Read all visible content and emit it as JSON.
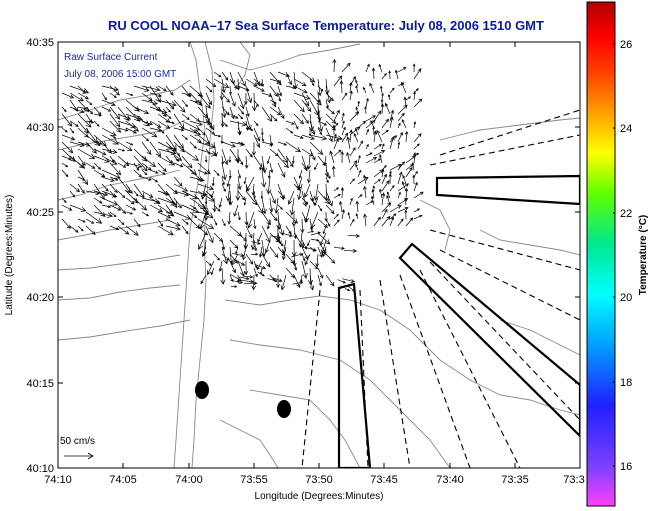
{
  "title": "RU COOL  NOAA–17  Sea Surface Temperature:  July 08, 2006 1510 GMT",
  "annotation": {
    "line1": "Raw Surface Current",
    "line2": "July 08, 2006 15:00 GMT"
  },
  "scale_label": "50 cm/s",
  "x_axis": {
    "label": "Longitude (Degrees:Minutes)",
    "ticks": [
      "74:10",
      "74:05",
      "74:00",
      "73:55",
      "73:50",
      "73:45",
      "73:40",
      "73:35",
      "73:3"
    ]
  },
  "y_axis": {
    "label": "Latitude (Degrees:Minutes)",
    "ticks": [
      "40:35",
      "40:30",
      "40:25",
      "40:20",
      "40:15",
      "40:10"
    ]
  },
  "colorbar": {
    "label": "Temperature (°C)",
    "ticks": [
      "26",
      "24",
      "22",
      "20",
      "18",
      "16"
    ]
  },
  "colors": {
    "title": "#0a1a9c",
    "annotation": "#1a2aa8",
    "coast": "#888888"
  },
  "icons": [
    "north-arrow-icon"
  ]
}
